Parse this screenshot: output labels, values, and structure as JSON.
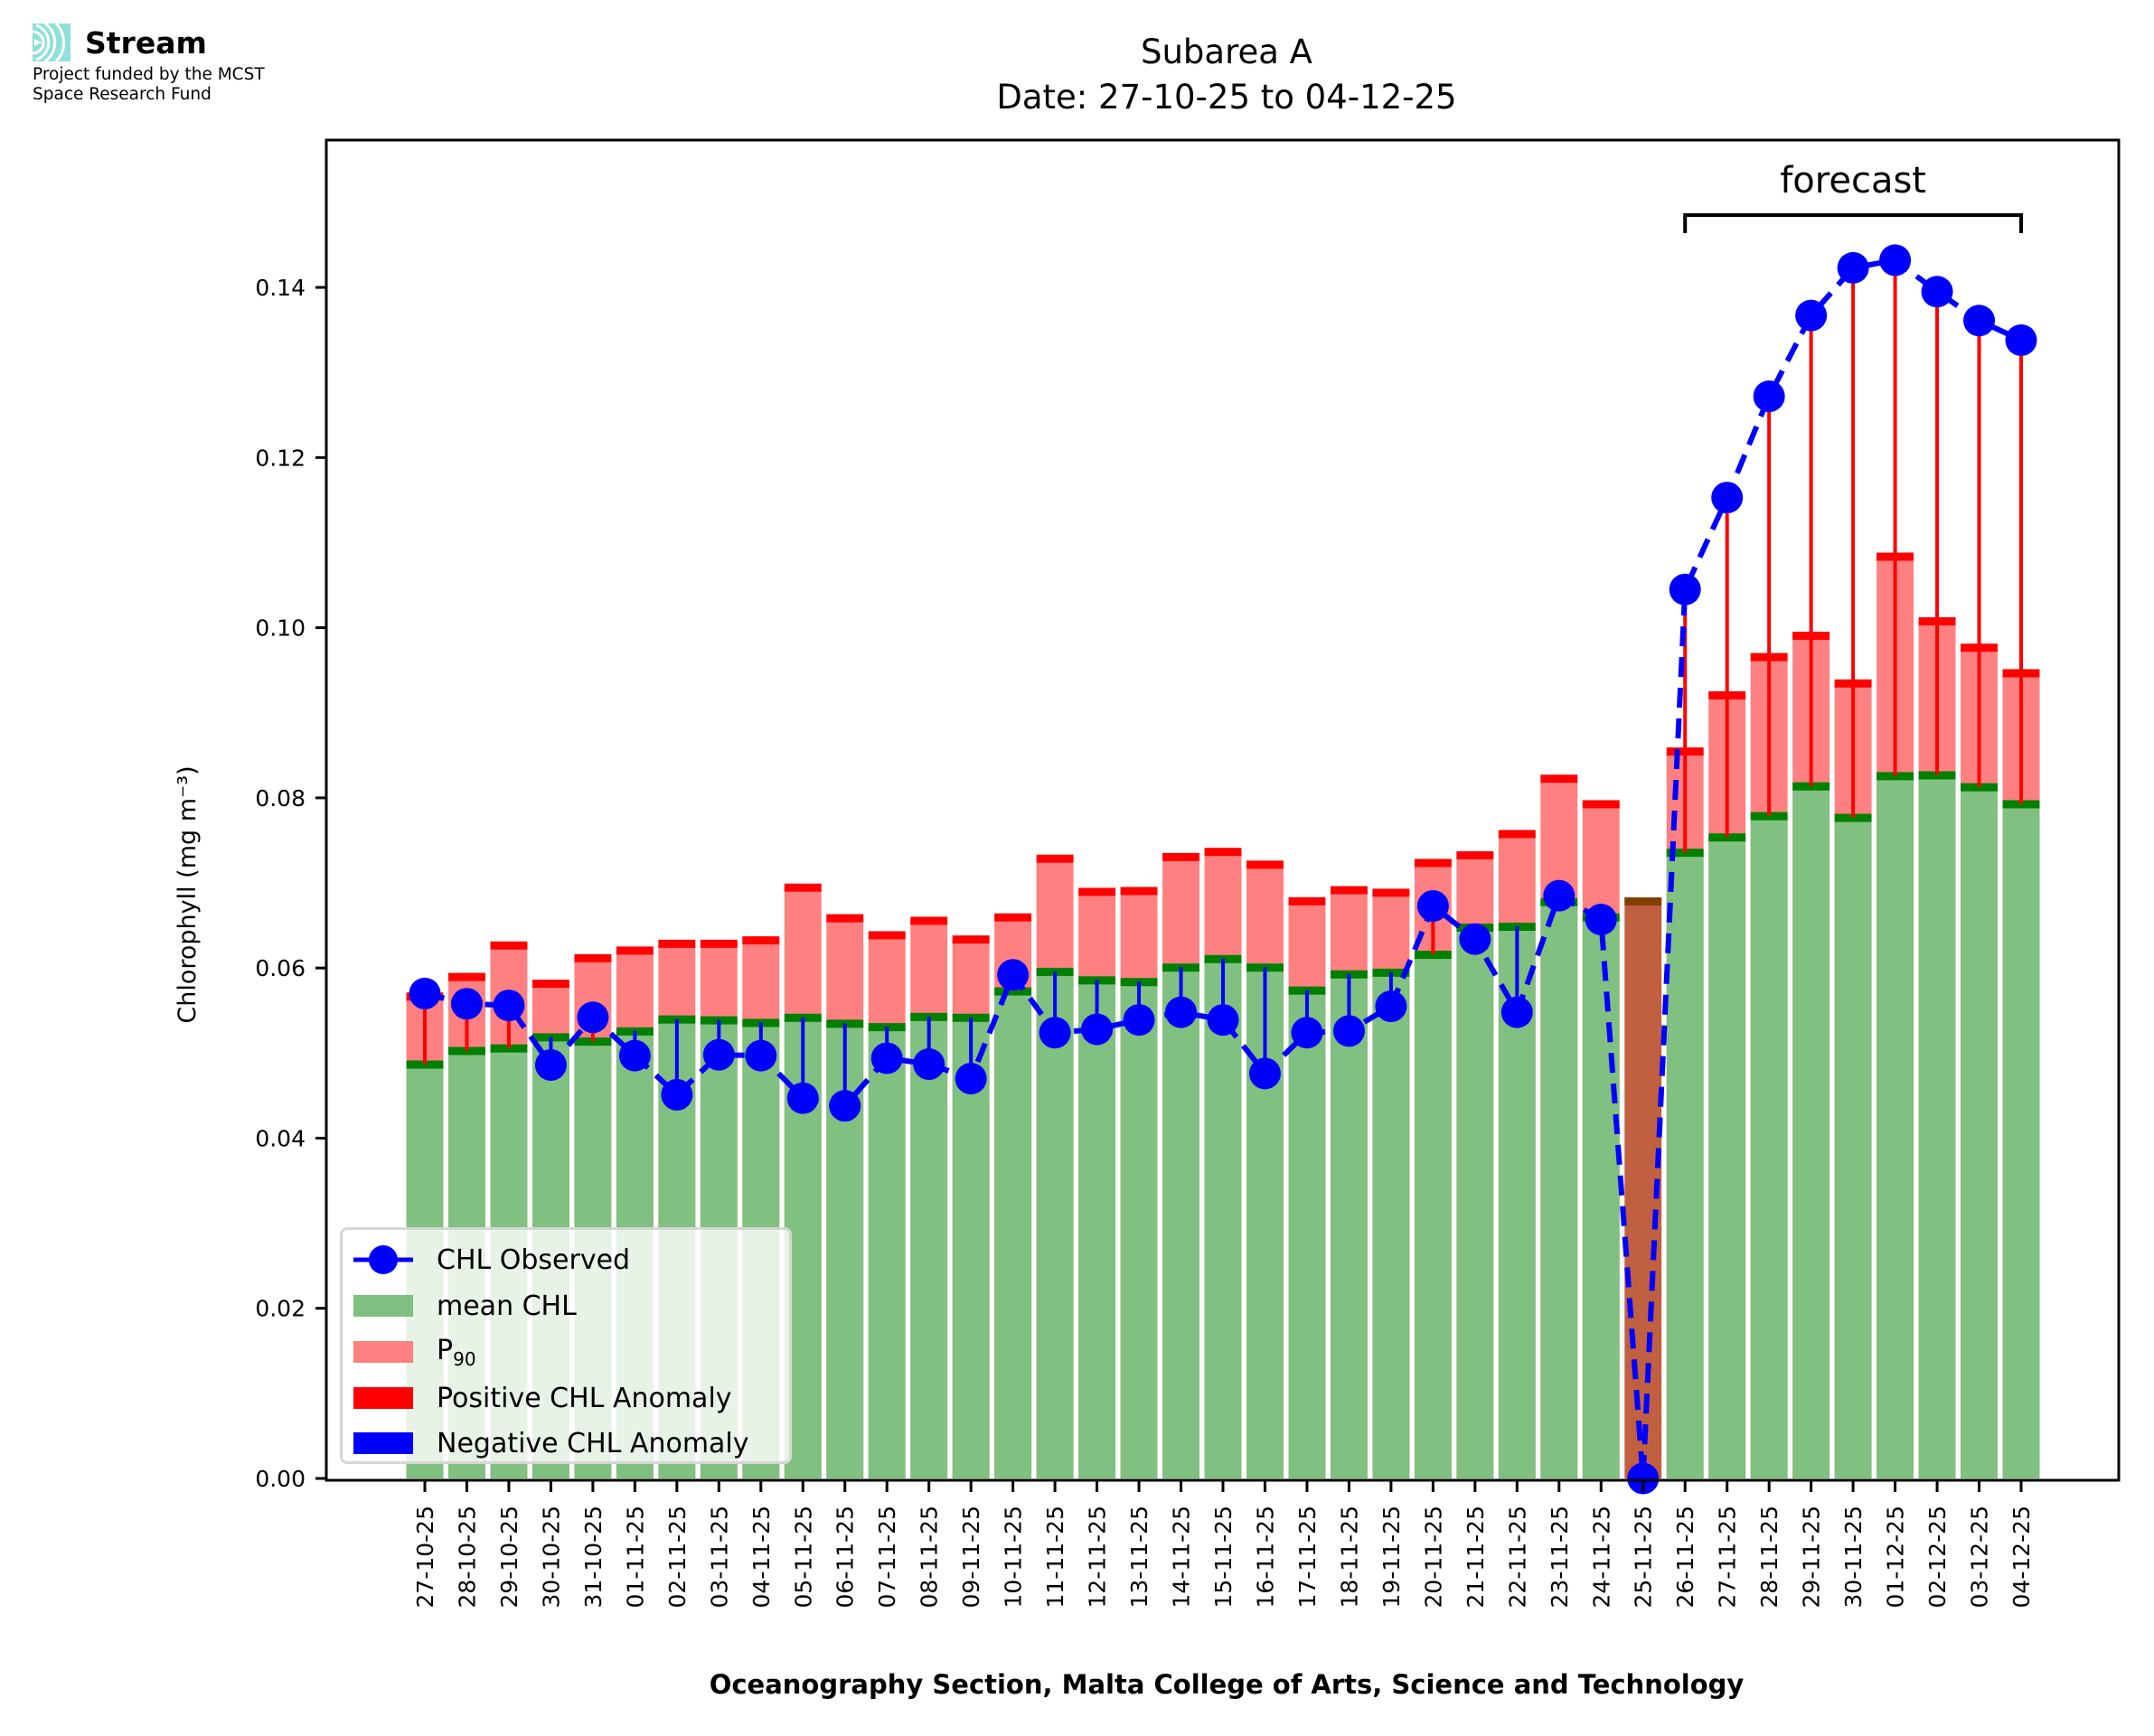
{
  "branding": {
    "name": "Stream",
    "line1": "Project funded by the MCST",
    "line2": "Space Research Fund",
    "colors": {
      "mark": "#7fded9"
    }
  },
  "chart_data": {
    "type": "bar",
    "title": "Subarea A",
    "subtitle": "Date: 27-10-25 to 04-12-25",
    "xlabel": "Oceanography Section, Malta College of Arts, Science and Technology",
    "ylabel": "Chlorophyll (mg m⁻³)",
    "ylim": [
      0,
      0.157
    ],
    "yticks": [
      "0.00",
      "0.02",
      "0.04",
      "0.06",
      "0.08",
      "0.10",
      "0.12",
      "0.14"
    ],
    "ytick_values": [
      0,
      0.02,
      0.04,
      0.06,
      0.08,
      0.1,
      0.12,
      0.14
    ],
    "categories": [
      "27-10-25",
      "28-10-25",
      "29-10-25",
      "30-10-25",
      "31-10-25",
      "01-11-25",
      "02-11-25",
      "03-11-25",
      "04-11-25",
      "05-11-25",
      "06-11-25",
      "07-11-25",
      "08-11-25",
      "09-11-25",
      "10-11-25",
      "11-11-25",
      "12-11-25",
      "13-11-25",
      "14-11-25",
      "15-11-25",
      "16-11-25",
      "17-11-25",
      "18-11-25",
      "19-11-25",
      "20-11-25",
      "21-11-25",
      "22-11-25",
      "23-11-25",
      "24-11-25",
      "25-11-25",
      "26-11-25",
      "27-11-25",
      "28-11-25",
      "29-11-25",
      "30-11-25",
      "01-12-25",
      "02-12-25",
      "03-12-25",
      "04-12-25"
    ],
    "series": [
      {
        "name": "mean CHL",
        "values": [
          0.0487,
          0.0503,
          0.0506,
          0.0519,
          0.0514,
          0.0526,
          0.054,
          0.0539,
          0.0536,
          0.0542,
          0.0535,
          0.0531,
          0.0543,
          0.0542,
          0.0573,
          0.0596,
          0.0586,
          0.0584,
          0.0601,
          0.0611,
          0.0601,
          0.0574,
          0.0593,
          0.0595,
          0.0616,
          0.0648,
          0.0649,
          0.0678,
          0.066,
          0.0683,
          0.0736,
          0.0754,
          0.0779,
          0.0814,
          0.0777,
          0.0826,
          0.0827,
          0.0813,
          0.0793
        ]
      },
      {
        "name": "P90",
        "label_main": "P",
        "label_sub": "90",
        "values": [
          0.0567,
          0.059,
          0.0627,
          0.0582,
          0.0612,
          0.0621,
          0.0629,
          0.0629,
          0.0633,
          0.0695,
          0.0659,
          0.0639,
          0.0656,
          0.0634,
          0.066,
          0.0729,
          0.069,
          0.0691,
          0.0731,
          0.0737,
          0.0722,
          0.0679,
          0.0692,
          0.0689,
          0.0724,
          0.0733,
          0.0758,
          0.0823,
          0.0793,
          null,
          0.0855,
          0.0921,
          0.0966,
          0.0991,
          0.0935,
          0.1084,
          0.1008,
          0.0977,
          0.0947
        ]
      },
      {
        "name": "CHL Observed",
        "values": [
          0.057,
          0.0558,
          0.0556,
          0.0486,
          0.0542,
          0.0497,
          0.0451,
          0.0498,
          0.0497,
          0.0447,
          0.0438,
          0.0494,
          0.0487,
          0.047,
          0.0592,
          0.0524,
          0.0528,
          0.0539,
          0.0548,
          0.0539,
          0.0476,
          0.0524,
          0.0526,
          0.0555,
          0.0673,
          0.0634,
          0.0548,
          0.0685,
          0.0657,
          0.0,
          0.1045,
          0.1153,
          0.1272,
          0.1367,
          0.1423,
          0.1432,
          0.1395,
          0.1361,
          0.1338
        ]
      },
      {
        "name": "Positive CHL Anomaly"
      },
      {
        "name": "Negative CHL Anomaly"
      }
    ],
    "missing_bar_index": 29,
    "annotation": {
      "text": "forecast",
      "from_index": 30,
      "to_index": 38,
      "bracket_value": 0.1485
    },
    "legend_position": "lower-left",
    "grid": false,
    "colors": {
      "mean": "#80c080",
      "mean_edge": "#008000",
      "p90": "#ff8080",
      "p90_edge": "#ff0000",
      "observed": "#0000ff",
      "positive": "#ff0000",
      "negative": "#0000ff",
      "missing": "#c06040",
      "missing_edge": "#804000"
    }
  }
}
